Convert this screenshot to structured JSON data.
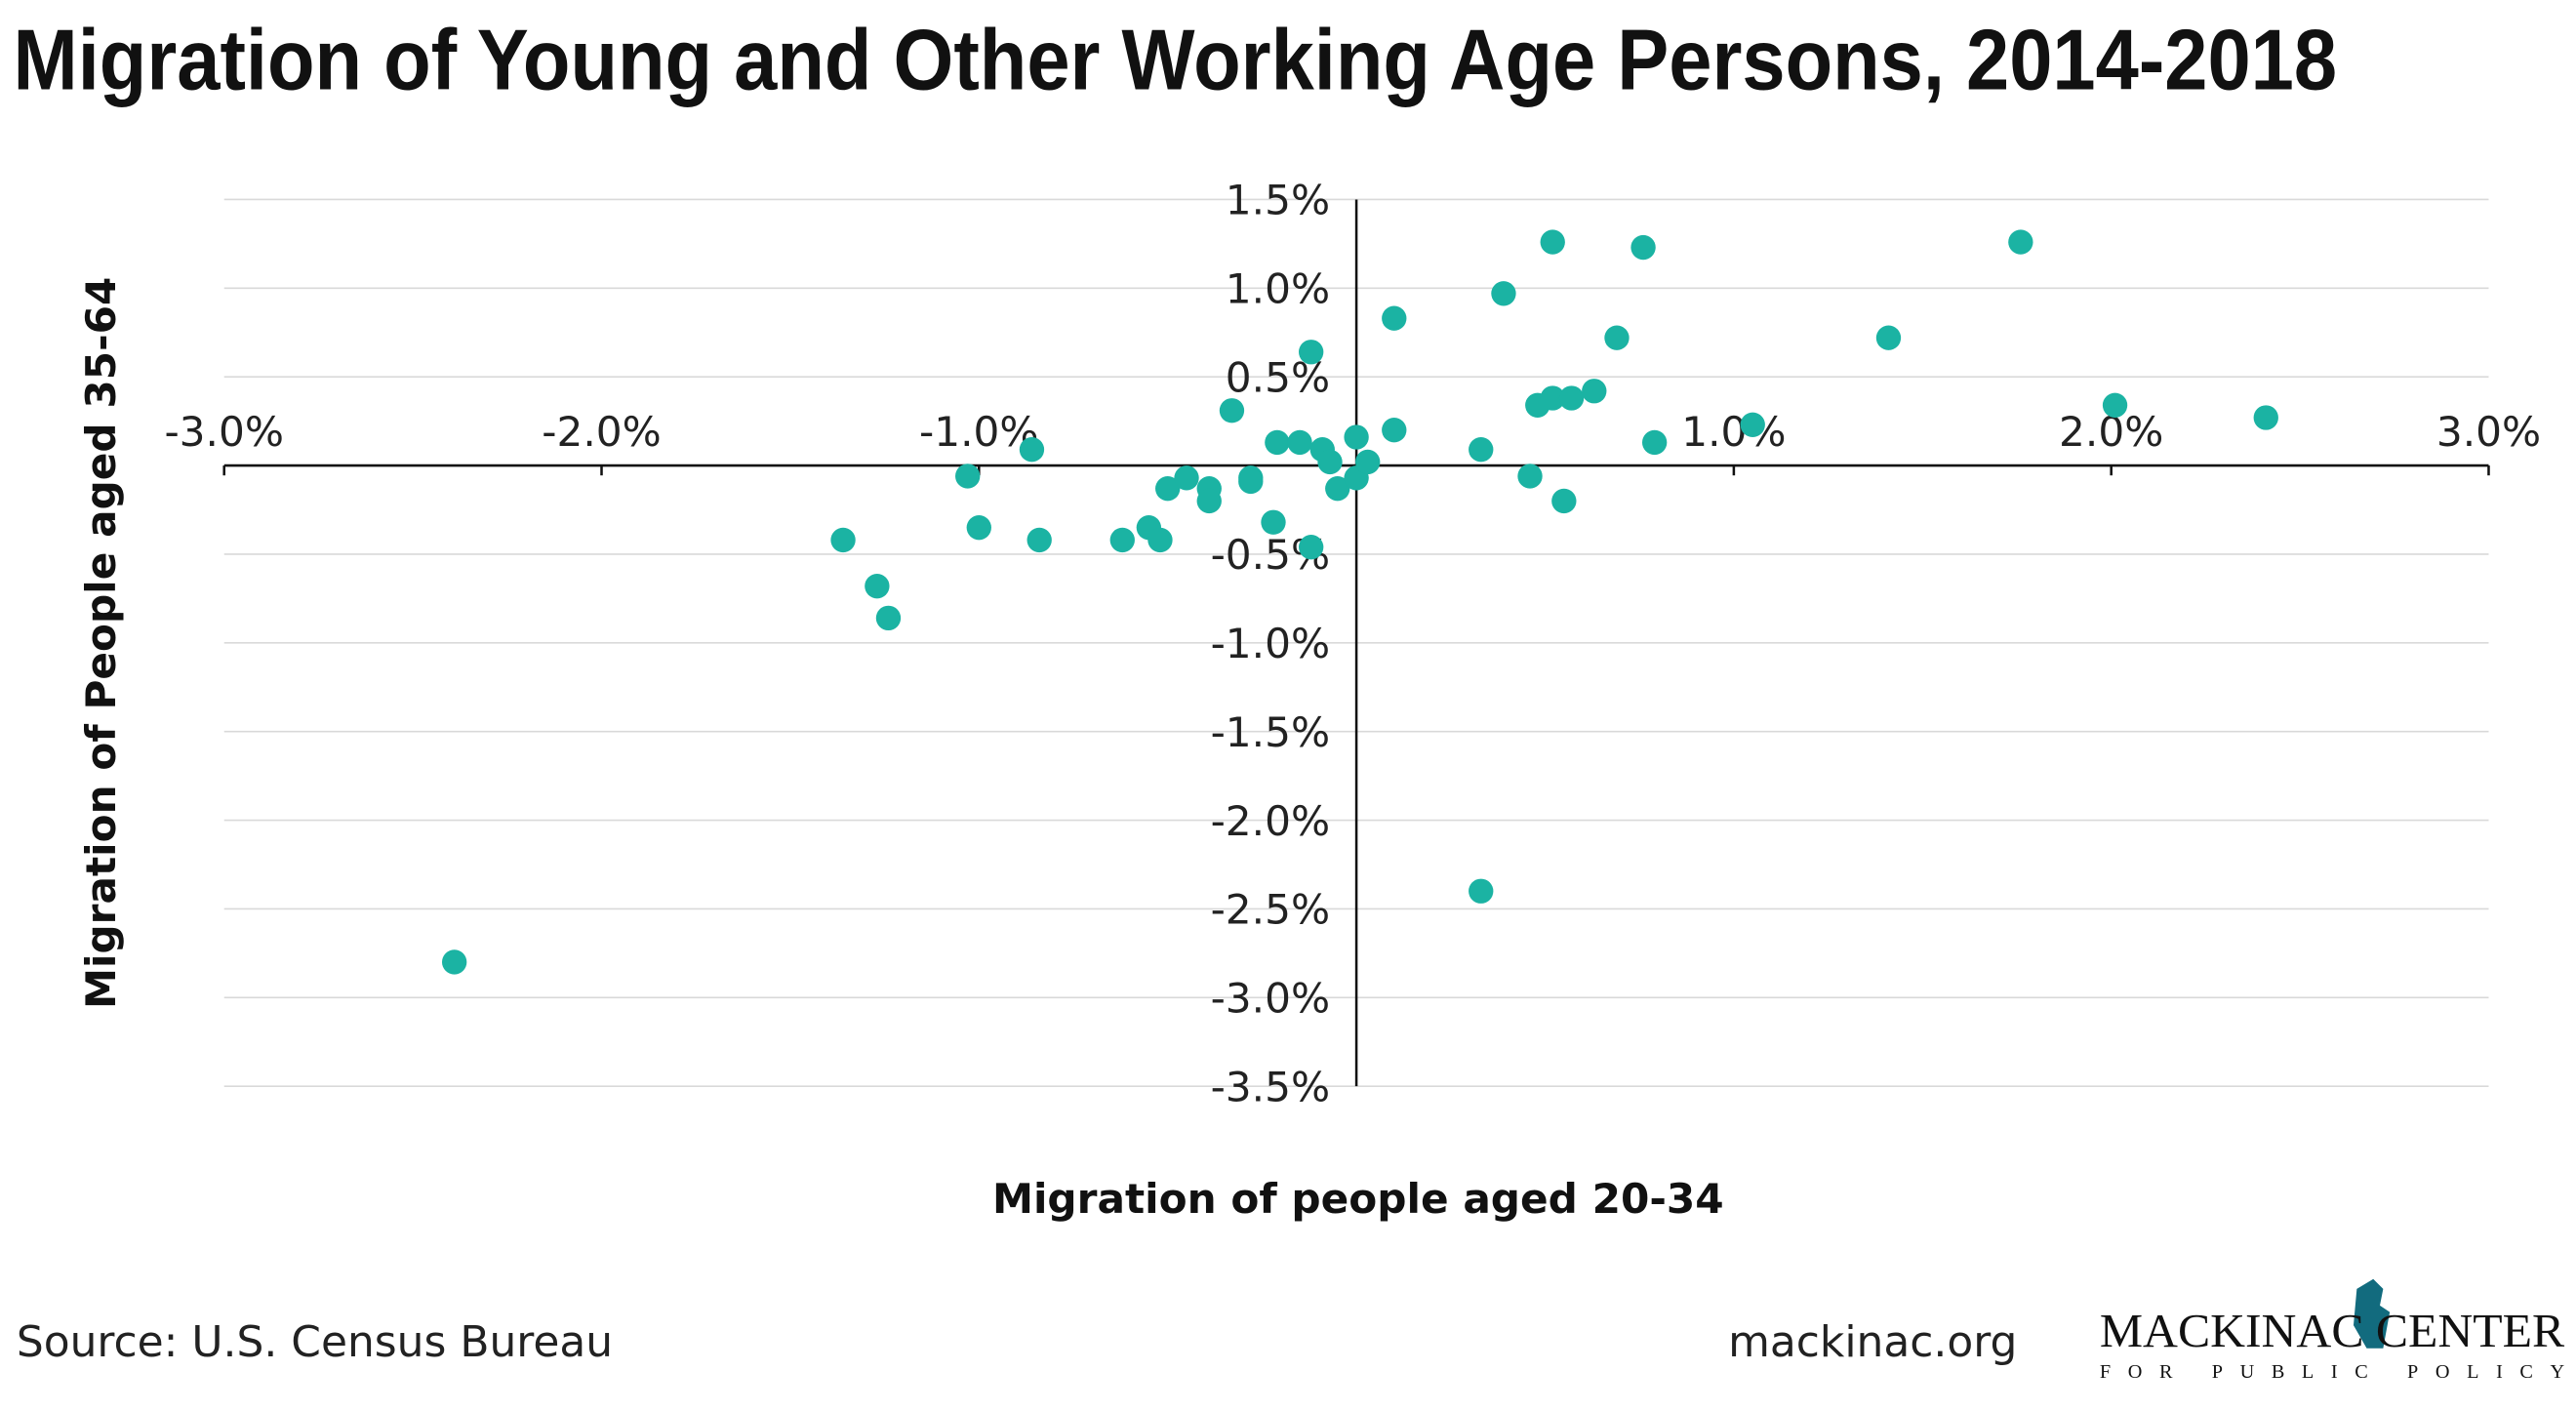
{
  "chart_data": {
    "type": "scatter",
    "title": "Migration of Young and Other Working Age Persons, 2014-2018",
    "x_label": "Migration of people aged 20-34",
    "y_label": "Migration of People aged 35-64",
    "source": "Source: U.S. Census Bureau",
    "website": "mackinac.org",
    "logo": {
      "name": "MACKINAC CENTER",
      "tagline": "FOR PUBLIC POLICY"
    },
    "color": "#1bb3a3",
    "grid": true,
    "xlim": [
      -3,
      3
    ],
    "ylim": [
      -3.5,
      1.5
    ],
    "xticks": [
      {
        "value": -3,
        "label": "-3.0%"
      },
      {
        "value": -2,
        "label": "-2.0%"
      },
      {
        "value": -1,
        "label": "-1.0%"
      },
      {
        "value": 1,
        "label": "1.0%"
      },
      {
        "value": 2,
        "label": "2.0%"
      },
      {
        "value": 3,
        "label": "3.0%"
      }
    ],
    "yticks": [
      {
        "value": 1.5,
        "label": "1.5%"
      },
      {
        "value": 1,
        "label": "1.0%"
      },
      {
        "value": 0.5,
        "label": "0.5%"
      },
      {
        "value": -0.5,
        "label": "-0.5%"
      },
      {
        "value": -1,
        "label": "-1.0%"
      },
      {
        "value": -1.5,
        "label": "-1.5%"
      },
      {
        "value": -2,
        "label": "-2.0%"
      },
      {
        "value": -2.5,
        "label": "-2.5%"
      },
      {
        "value": -3,
        "label": "-3.0%"
      },
      {
        "value": -3.5,
        "label": "-3.5%"
      }
    ],
    "x": [
      -2.39,
      -1.36,
      -1.27,
      -1.24,
      -1.03,
      -1.0,
      -0.86,
      -0.84,
      -0.62,
      -0.55,
      -0.52,
      -0.5,
      -0.45,
      -0.39,
      -0.39,
      -0.33,
      -0.28,
      -0.28,
      -0.22,
      -0.21,
      -0.15,
      -0.12,
      -0.12,
      -0.09,
      -0.07,
      -0.05,
      0.0,
      0.0,
      0.03,
      0.1,
      0.1,
      0.33,
      0.33,
      0.39,
      0.46,
      0.48,
      0.52,
      0.52,
      0.55,
      0.57,
      0.63,
      0.69,
      0.76,
      0.79,
      1.05,
      1.41,
      1.76,
      2.01,
      2.41
    ],
    "y": [
      -2.8,
      -0.42,
      -0.68,
      -0.86,
      -0.06,
      -0.35,
      0.09,
      -0.42,
      -0.42,
      -0.35,
      -0.42,
      -0.13,
      -0.07,
      -0.13,
      -0.2,
      0.31,
      -0.07,
      -0.09,
      -0.32,
      0.13,
      0.13,
      0.64,
      -0.46,
      0.09,
      0.02,
      -0.13,
      0.16,
      -0.07,
      0.02,
      0.83,
      0.2,
      0.09,
      -2.4,
      0.97,
      -0.06,
      0.34,
      1.26,
      0.38,
      -0.2,
      0.38,
      0.42,
      0.72,
      1.23,
      0.13,
      0.23,
      0.72,
      1.26,
      0.34,
      0.27
    ]
  }
}
